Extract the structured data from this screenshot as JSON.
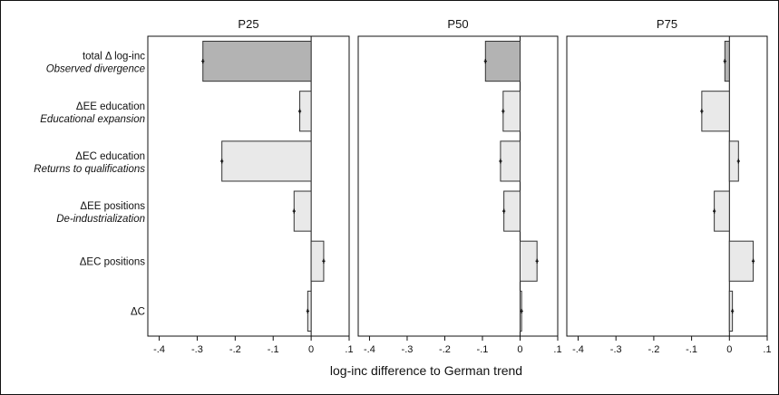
{
  "chart_data": {
    "type": "bar",
    "orientation": "horizontal",
    "xlabel": "log-inc difference to German trend",
    "xlim": [
      -0.43,
      0.1
    ],
    "x_ticks": [
      -0.4,
      -0.3,
      -0.2,
      -0.1,
      0,
      0.1
    ],
    "x_tick_labels": [
      "-.4",
      "-.3",
      "-.2",
      "-.1",
      "0",
      ".1"
    ],
    "categories": [
      {
        "label": "total Δ log-inc",
        "sublabel": "Observed divergence"
      },
      {
        "label": "ΔEE education",
        "sublabel": "Educational expansion"
      },
      {
        "label": "ΔEC education",
        "sublabel": "Returns to qualifications"
      },
      {
        "label": "ΔEE positions",
        "sublabel": "De-industrialization"
      },
      {
        "label": "ΔEC positions",
        "sublabel": ""
      },
      {
        "label": "ΔC",
        "sublabel": ""
      }
    ],
    "panels": [
      {
        "title": "P25",
        "values": [
          -0.285,
          -0.03,
          -0.235,
          -0.045,
          0.033,
          -0.009
        ]
      },
      {
        "title": "P50",
        "values": [
          -0.092,
          -0.045,
          -0.052,
          -0.043,
          0.045,
          0.004
        ]
      },
      {
        "title": "P75",
        "values": [
          -0.012,
          -0.073,
          0.024,
          -0.04,
          0.063,
          0.008
        ]
      }
    ],
    "colors": {
      "highlight_bar": "#b3b3b3",
      "bar": "#e9e9e9",
      "bar_edge": "#333333",
      "error_bar": "#111111"
    },
    "grid": false,
    "legend": "none"
  }
}
